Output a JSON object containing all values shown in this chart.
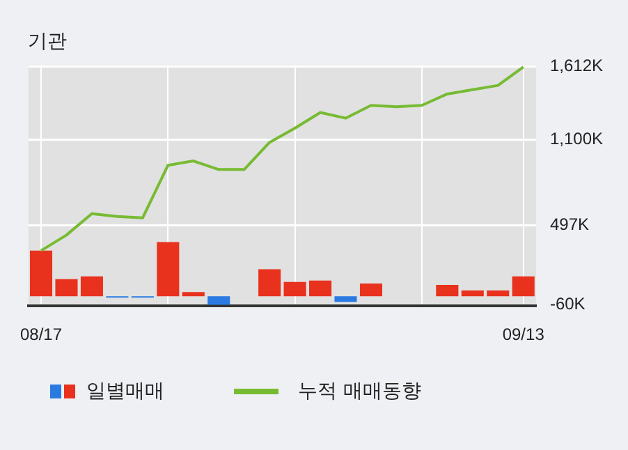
{
  "chart_data": {
    "type": "bar",
    "title": "기관",
    "categories": [
      "08/17",
      null,
      null,
      null,
      null,
      null,
      null,
      null,
      null,
      null,
      null,
      null,
      null,
      null,
      null,
      null,
      null,
      null,
      null,
      "09/13"
    ],
    "series": [
      {
        "name": "일별매매",
        "colors": [
          "#e8321e",
          "#e8321e",
          "#e8321e",
          "#2a7ae2",
          "#2a7ae2",
          "#e8321e",
          "#e8321e",
          "#2a7ae2",
          "#e8321e",
          "#e8321e",
          "#e8321e",
          "#e8321e",
          "#2a7ae2",
          "#e8321e",
          "#e8321e",
          "#e8321e",
          "#e8321e",
          "#e8321e",
          "#e8321e",
          "#e8321e"
        ],
        "values": [
          320,
          120,
          140,
          -10,
          -10,
          380,
          30,
          -60,
          0,
          190,
          100,
          110,
          -40,
          90,
          0,
          0,
          80,
          40,
          40,
          140
        ]
      },
      {
        "name": "누적 매매동향",
        "type": "line",
        "color": "#77bb33",
        "values": [
          320,
          430,
          580,
          560,
          550,
          920,
          950,
          890,
          890,
          1080,
          1180,
          1290,
          1250,
          1340,
          1330,
          1340,
          1420,
          1450,
          1480,
          1610
        ]
      }
    ],
    "ylim": [
      -68,
      1622
    ],
    "yticks": [
      {
        "value": -60,
        "label": "-60K"
      },
      {
        "value": 497,
        "label": "497K"
      },
      {
        "value": 1100,
        "label": "1,100K"
      },
      {
        "value": 1612,
        "label": "1,612K"
      }
    ],
    "grid": true,
    "legend": "bottom",
    "marker": "none"
  }
}
